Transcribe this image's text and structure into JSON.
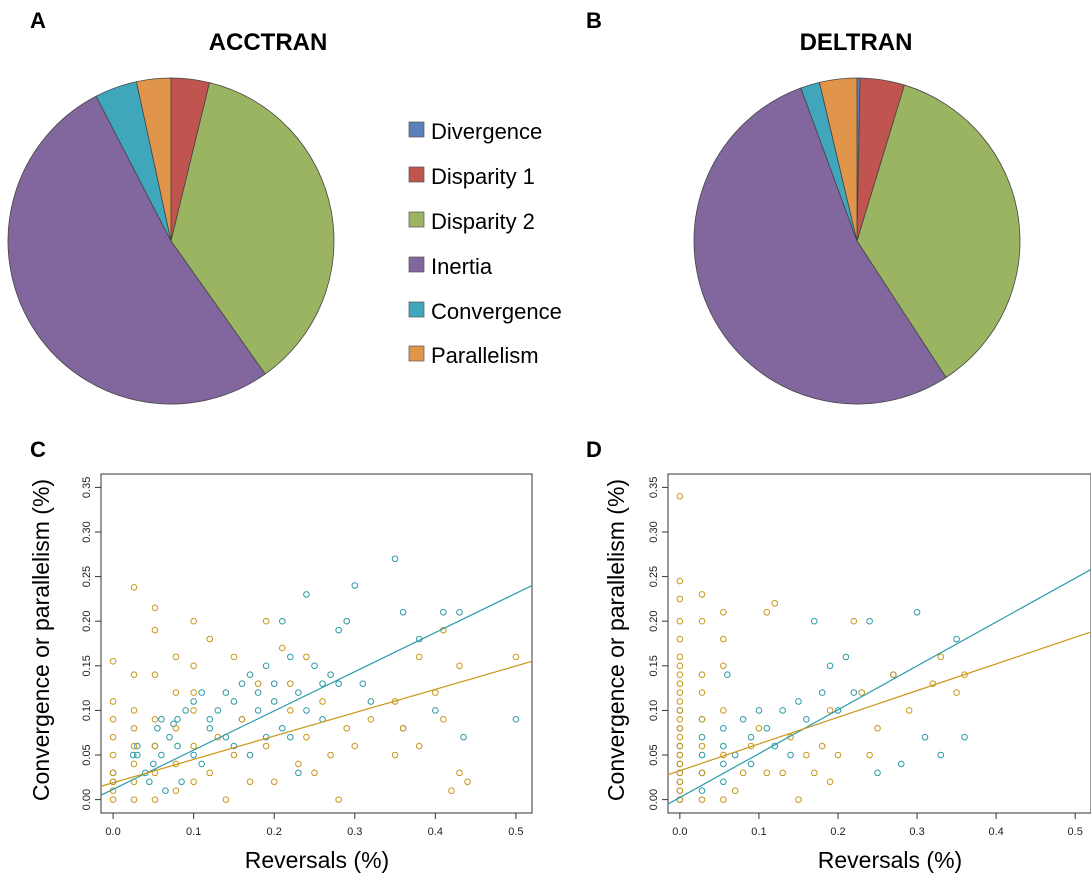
{
  "colors": {
    "divergence": "#5a82b8",
    "disparity1": "#c0544f",
    "disparity2": "#9bb461",
    "inertia": "#82679e",
    "convergence": "#40a6bc",
    "parallelism": "#e0954a",
    "scatter_convergence": "#2a9aa8",
    "scatter_parallelism": "#c99618"
  },
  "panels": {
    "A": "A",
    "B": "B",
    "C": "C",
    "D": "D"
  },
  "legend": [
    "Divergence",
    "Disparity 1",
    "Disparity 2",
    "Inertia",
    "Convergence",
    "Parallelism"
  ],
  "chart_data": [
    {
      "panel": "A",
      "type": "pie",
      "title": "ACCTRAN",
      "labels": [
        "Divergence",
        "Disparity 1",
        "Disparity 2",
        "Inertia",
        "Convergence",
        "Parallelism"
      ],
      "values": [
        0.0,
        3.8,
        36.4,
        52.2,
        4.2,
        3.4
      ]
    },
    {
      "panel": "B",
      "type": "pie",
      "title": "DELTRAN",
      "labels": [
        "Divergence",
        "Disparity 1",
        "Disparity 2",
        "Inertia",
        "Convergence",
        "Parallelism"
      ],
      "values": [
        0.3,
        4.4,
        36.1,
        53.6,
        1.9,
        3.7
      ]
    },
    {
      "panel": "C",
      "type": "scatter",
      "xlabel": "Reversals (%)",
      "ylabel": "Convergence or parallelism (%)",
      "xlim": [
        -0.015,
        0.52
      ],
      "ylim": [
        -0.015,
        0.365
      ],
      "xticks": [
        "0.0",
        "0.1",
        "0.2",
        "0.3",
        "0.4",
        "0.5"
      ],
      "yticks": [
        "0.00",
        "0.05",
        "0.10",
        "0.15",
        "0.20",
        "0.25",
        "0.30",
        "0.35"
      ],
      "series": [
        {
          "points": [
            [
              0.05,
              0.04
            ],
            [
              0.052,
              0.06
            ],
            [
              0.055,
              0.08
            ],
            [
              0.06,
              0.09
            ],
            [
              0.07,
              0.07
            ],
            [
              0.075,
              0.085
            ],
            [
              0.08,
              0.09
            ],
            [
              0.09,
              0.1
            ],
            [
              0.1,
              0.11
            ],
            [
              0.11,
              0.12
            ],
            [
              0.12,
              0.09
            ],
            [
              0.13,
              0.1
            ],
            [
              0.14,
              0.12
            ],
            [
              0.15,
              0.11
            ],
            [
              0.16,
              0.13
            ],
            [
              0.17,
              0.14
            ],
            [
              0.18,
              0.12
            ],
            [
              0.19,
              0.15
            ],
            [
              0.2,
              0.13
            ],
            [
              0.21,
              0.2
            ],
            [
              0.22,
              0.16
            ],
            [
              0.23,
              0.12
            ],
            [
              0.24,
              0.23
            ],
            [
              0.25,
              0.15
            ],
            [
              0.26,
              0.13
            ],
            [
              0.27,
              0.14
            ],
            [
              0.28,
              0.19
            ],
            [
              0.29,
              0.2
            ],
            [
              0.3,
              0.24
            ],
            [
              0.31,
              0.13
            ],
            [
              0.35,
              0.27
            ],
            [
              0.36,
              0.21
            ],
            [
              0.38,
              0.18
            ],
            [
              0.41,
              0.21
            ],
            [
              0.43,
              0.21
            ],
            [
              0.5,
              0.09
            ],
            [
              0.03,
              0.05
            ],
            [
              0.04,
              0.03
            ],
            [
              0.06,
              0.05
            ],
            [
              0.08,
              0.06
            ],
            [
              0.1,
              0.05
            ],
            [
              0.12,
              0.08
            ],
            [
              0.14,
              0.07
            ],
            [
              0.16,
              0.09
            ],
            [
              0.18,
              0.1
            ],
            [
              0.2,
              0.11
            ],
            [
              0.22,
              0.07
            ],
            [
              0.24,
              0.1
            ],
            [
              0.26,
              0.09
            ],
            [
              0.28,
              0.13
            ],
            [
              0.32,
              0.11
            ],
            [
              0.4,
              0.1
            ],
            [
              0.435,
              0.07
            ],
            [
              0.36,
              0.08
            ],
            [
              0.0,
              0.02
            ],
            [
              0.0,
              0.03
            ],
            [
              0.025,
              0.05
            ],
            [
              0.03,
              0.06
            ],
            [
              0.045,
              0.02
            ],
            [
              0.065,
              0.01
            ],
            [
              0.085,
              0.02
            ],
            [
              0.11,
              0.04
            ],
            [
              0.15,
              0.06
            ],
            [
              0.17,
              0.05
            ],
            [
              0.19,
              0.07
            ],
            [
              0.21,
              0.08
            ],
            [
              0.23,
              0.03
            ]
          ],
          "trend": [
            [
              -0.015,
              0.005
            ],
            [
              0.52,
              0.24
            ]
          ]
        },
        {
          "points": [
            [
              0.0,
              0.0
            ],
            [
              0.0,
              0.01
            ],
            [
              0.0,
              0.02
            ],
            [
              0.0,
              0.03
            ],
            [
              0.0,
              0.05
            ],
            [
              0.0,
              0.07
            ],
            [
              0.0,
              0.09
            ],
            [
              0.0,
              0.11
            ],
            [
              0.0,
              0.155
            ],
            [
              0.026,
              0.0
            ],
            [
              0.026,
              0.02
            ],
            [
              0.026,
              0.04
            ],
            [
              0.026,
              0.06
            ],
            [
              0.026,
              0.08
            ],
            [
              0.026,
              0.1
            ],
            [
              0.026,
              0.14
            ],
            [
              0.026,
              0.238
            ],
            [
              0.052,
              0.0
            ],
            [
              0.052,
              0.03
            ],
            [
              0.052,
              0.06
            ],
            [
              0.052,
              0.09
            ],
            [
              0.052,
              0.14
            ],
            [
              0.052,
              0.19
            ],
            [
              0.052,
              0.215
            ],
            [
              0.078,
              0.01
            ],
            [
              0.078,
              0.04
            ],
            [
              0.078,
              0.08
            ],
            [
              0.078,
              0.12
            ],
            [
              0.078,
              0.16
            ],
            [
              0.1,
              0.02
            ],
            [
              0.1,
              0.06
            ],
            [
              0.1,
              0.1
            ],
            [
              0.1,
              0.15
            ],
            [
              0.1,
              0.2
            ],
            [
              0.12,
              0.03
            ],
            [
              0.13,
              0.07
            ],
            [
              0.14,
              0.0
            ],
            [
              0.15,
              0.05
            ],
            [
              0.16,
              0.09
            ],
            [
              0.17,
              0.02
            ],
            [
              0.18,
              0.13
            ],
            [
              0.19,
              0.06
            ],
            [
              0.2,
              0.02
            ],
            [
              0.21,
              0.17
            ],
            [
              0.22,
              0.1
            ],
            [
              0.23,
              0.04
            ],
            [
              0.24,
              0.07
            ],
            [
              0.25,
              0.03
            ],
            [
              0.26,
              0.11
            ],
            [
              0.27,
              0.05
            ],
            [
              0.28,
              0.0
            ],
            [
              0.29,
              0.08
            ],
            [
              0.3,
              0.06
            ],
            [
              0.32,
              0.09
            ],
            [
              0.35,
              0.11
            ],
            [
              0.36,
              0.08
            ],
            [
              0.38,
              0.06
            ],
            [
              0.4,
              0.12
            ],
            [
              0.41,
              0.09
            ],
            [
              0.42,
              0.01
            ],
            [
              0.43,
              0.03
            ],
            [
              0.44,
              0.02
            ],
            [
              0.38,
              0.16
            ],
            [
              0.41,
              0.19
            ],
            [
              0.43,
              0.15
            ],
            [
              0.5,
              0.16
            ],
            [
              0.35,
              0.05
            ],
            [
              0.24,
              0.16
            ],
            [
              0.22,
              0.13
            ],
            [
              0.19,
              0.2
            ],
            [
              0.15,
              0.16
            ],
            [
              0.12,
              0.18
            ],
            [
              0.1,
              0.12
            ]
          ],
          "trend": [
            [
              -0.015,
              0.015
            ],
            [
              0.52,
              0.155
            ]
          ]
        }
      ]
    },
    {
      "panel": "D",
      "type": "scatter",
      "xlabel": "Reversals (%)",
      "ylabel": "Convergence or parallelism (%)",
      "xlim": [
        -0.015,
        0.52
      ],
      "ylim": [
        -0.015,
        0.365
      ],
      "xticks": [
        "0.0",
        "0.1",
        "0.2",
        "0.3",
        "0.4",
        "0.5"
      ],
      "yticks": [
        "0.00",
        "0.05",
        "0.10",
        "0.15",
        "0.20",
        "0.25",
        "0.30",
        "0.35"
      ],
      "series": [
        {
          "points": [
            [
              0.0,
              0.0
            ],
            [
              0.0,
              0.01
            ],
            [
              0.0,
              0.02
            ],
            [
              0.0,
              0.03
            ],
            [
              0.0,
              0.04
            ],
            [
              0.0,
              0.05
            ],
            [
              0.0,
              0.06
            ],
            [
              0.0,
              0.08
            ],
            [
              0.0,
              0.1
            ],
            [
              0.028,
              0.01
            ],
            [
              0.028,
              0.03
            ],
            [
              0.028,
              0.05
            ],
            [
              0.028,
              0.07
            ],
            [
              0.028,
              0.09
            ],
            [
              0.055,
              0.02
            ],
            [
              0.055,
              0.04
            ],
            [
              0.055,
              0.06
            ],
            [
              0.055,
              0.08
            ],
            [
              0.07,
              0.05
            ],
            [
              0.08,
              0.09
            ],
            [
              0.09,
              0.07
            ],
            [
              0.1,
              0.1
            ],
            [
              0.11,
              0.08
            ],
            [
              0.13,
              0.1
            ],
            [
              0.15,
              0.11
            ],
            [
              0.16,
              0.09
            ],
            [
              0.17,
              0.2
            ],
            [
              0.18,
              0.12
            ],
            [
              0.19,
              0.15
            ],
            [
              0.2,
              0.1
            ],
            [
              0.21,
              0.16
            ],
            [
              0.22,
              0.12
            ],
            [
              0.24,
              0.2
            ],
            [
              0.25,
              0.03
            ],
            [
              0.27,
              0.14
            ],
            [
              0.28,
              0.04
            ],
            [
              0.3,
              0.21
            ],
            [
              0.31,
              0.07
            ],
            [
              0.33,
              0.05
            ],
            [
              0.35,
              0.18
            ],
            [
              0.36,
              0.07
            ],
            [
              0.12,
              0.06
            ],
            [
              0.14,
              0.05
            ],
            [
              0.06,
              0.14
            ],
            [
              0.09,
              0.04
            ]
          ],
          "trend": [
            [
              -0.015,
              -0.005
            ],
            [
              0.52,
              0.258
            ]
          ]
        },
        {
          "points": [
            [
              0.0,
              0.0
            ],
            [
              0.0,
              0.01
            ],
            [
              0.0,
              0.02
            ],
            [
              0.0,
              0.03
            ],
            [
              0.0,
              0.04
            ],
            [
              0.0,
              0.05
            ],
            [
              0.0,
              0.06
            ],
            [
              0.0,
              0.07
            ],
            [
              0.0,
              0.08
            ],
            [
              0.0,
              0.09
            ],
            [
              0.0,
              0.1
            ],
            [
              0.0,
              0.11
            ],
            [
              0.0,
              0.12
            ],
            [
              0.0,
              0.13
            ],
            [
              0.0,
              0.14
            ],
            [
              0.0,
              0.15
            ],
            [
              0.0,
              0.16
            ],
            [
              0.0,
              0.18
            ],
            [
              0.0,
              0.2
            ],
            [
              0.0,
              0.225
            ],
            [
              0.0,
              0.245
            ],
            [
              0.0,
              0.34
            ],
            [
              0.028,
              0.0
            ],
            [
              0.028,
              0.03
            ],
            [
              0.028,
              0.06
            ],
            [
              0.028,
              0.09
            ],
            [
              0.028,
              0.12
            ],
            [
              0.028,
              0.14
            ],
            [
              0.028,
              0.2
            ],
            [
              0.028,
              0.23
            ],
            [
              0.055,
              0.0
            ],
            [
              0.055,
              0.05
            ],
            [
              0.055,
              0.1
            ],
            [
              0.055,
              0.15
            ],
            [
              0.055,
              0.18
            ],
            [
              0.055,
              0.21
            ],
            [
              0.08,
              0.03
            ],
            [
              0.09,
              0.06
            ],
            [
              0.1,
              0.08
            ],
            [
              0.11,
              0.21
            ],
            [
              0.12,
              0.22
            ],
            [
              0.13,
              0.03
            ],
            [
              0.14,
              0.07
            ],
            [
              0.15,
              0.0
            ],
            [
              0.16,
              0.05
            ],
            [
              0.17,
              0.03
            ],
            [
              0.18,
              0.06
            ],
            [
              0.19,
              0.1
            ],
            [
              0.2,
              0.05
            ],
            [
              0.22,
              0.2
            ],
            [
              0.23,
              0.12
            ],
            [
              0.24,
              0.05
            ],
            [
              0.25,
              0.08
            ],
            [
              0.27,
              0.14
            ],
            [
              0.29,
              0.1
            ],
            [
              0.32,
              0.13
            ],
            [
              0.33,
              0.16
            ],
            [
              0.35,
              0.12
            ],
            [
              0.36,
              0.14
            ],
            [
              0.19,
              0.02
            ],
            [
              0.11,
              0.03
            ],
            [
              0.07,
              0.01
            ]
          ],
          "trend": [
            [
              -0.015,
              0.028
            ],
            [
              0.52,
              0.188
            ]
          ]
        }
      ]
    }
  ]
}
